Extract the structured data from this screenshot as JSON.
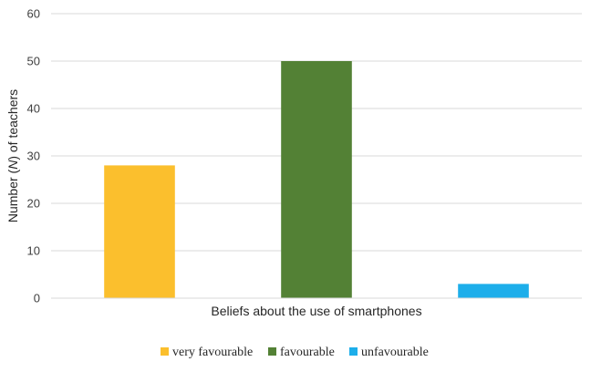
{
  "chart_data": {
    "type": "bar",
    "categories": [
      "very favourable",
      "favourable",
      "unfavourable"
    ],
    "values": [
      28,
      50,
      3
    ],
    "colors": [
      "#FBBF2D",
      "#538135",
      "#1DAEEA"
    ],
    "xlabel": "Beliefs about the use of smartphones",
    "ylabel_parts": [
      "Number (",
      "N",
      ") of teachers"
    ],
    "ylim": [
      0,
      60
    ],
    "yticks": [
      0,
      10,
      20,
      30,
      40,
      50,
      60
    ],
    "grid": true,
    "legend_position": "bottom",
    "legend": [
      "very favourable",
      "favourable",
      "unfavourable"
    ]
  }
}
